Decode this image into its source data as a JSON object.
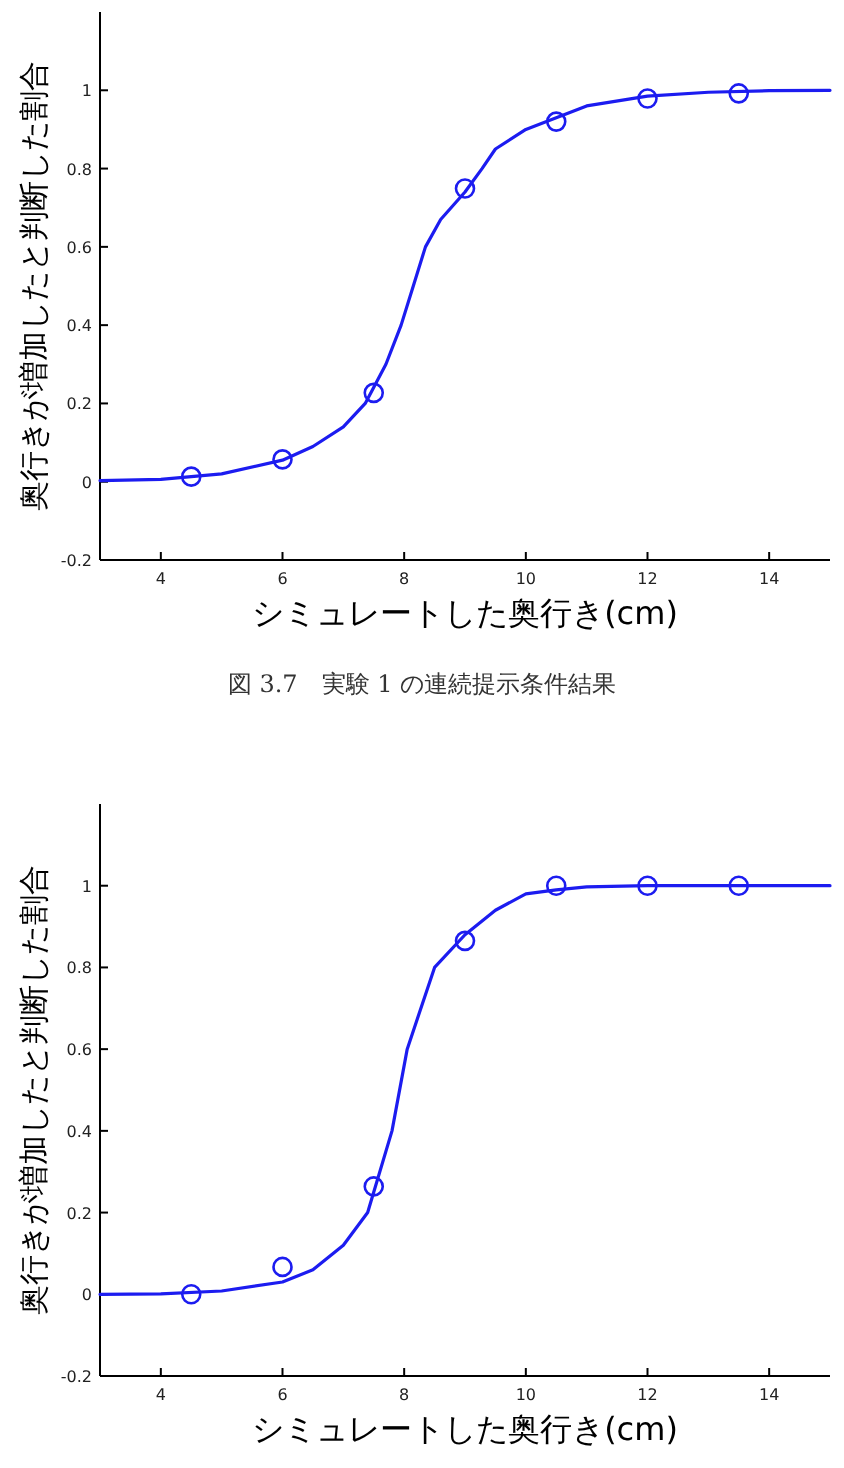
{
  "chart_data": [
    {
      "type": "scatter",
      "xlabel": "シミュレートした奥行き(cm)",
      "ylabel": "奥行きが増加したと判断した割合",
      "xlim": [
        3,
        15
      ],
      "ylim": [
        -0.2,
        1.2
      ],
      "xticks": [
        4,
        6,
        8,
        10,
        12,
        14
      ],
      "yticks": [
        -0.2,
        0,
        0.2,
        0.4,
        0.6,
        0.8,
        1
      ],
      "annotations": [
        "図 3.7　実験 1 の連続提示条件結果"
      ],
      "series": [
        {
          "type": "scatter",
          "marker": "circle",
          "color": "#1c1cf0",
          "x": [
            4.5,
            6,
            7.5,
            9,
            10.5,
            12,
            13.5
          ],
          "values": [
            0.013,
            0.057,
            0.227,
            0.749,
            0.92,
            0.979,
            0.992
          ]
        },
        {
          "type": "line",
          "line_style": "solid",
          "color": "#1c1cf0",
          "x": [
            3,
            4,
            5,
            6,
            6.5,
            7,
            7.36,
            7.7,
            7.95,
            8.15,
            8.35,
            8.6,
            9,
            9.28,
            9.5,
            10,
            10.5,
            11,
            12,
            13,
            14,
            15
          ],
          "values": [
            0.003,
            0.006,
            0.02,
            0.055,
            0.09,
            0.14,
            0.2,
            0.3,
            0.4,
            0.5,
            0.6,
            0.67,
            0.74,
            0.8,
            0.85,
            0.9,
            0.93,
            0.96,
            0.985,
            0.995,
            0.999,
            1
          ]
        }
      ]
    },
    {
      "type": "scatter",
      "xlabel": "シミュレートした奥行き(cm)",
      "ylabel": "奥行きが増加したと判断した割合",
      "xlim": [
        3,
        15
      ],
      "ylim": [
        -0.2,
        1.2
      ],
      "xticks": [
        4,
        6,
        8,
        10,
        12,
        14
      ],
      "yticks": [
        -0.2,
        0,
        0.2,
        0.4,
        0.6,
        0.8,
        1
      ],
      "series": [
        {
          "type": "scatter",
          "marker": "circle",
          "color": "#1c1cf0",
          "x": [
            4.5,
            6,
            7.5,
            9,
            10.5,
            12,
            13.5
          ],
          "values": [
            0.0,
            0.067,
            0.264,
            0.865,
            1.0,
            1.0,
            1.0
          ]
        },
        {
          "type": "line",
          "line_style": "solid",
          "color": "#1c1cf0",
          "x": [
            3,
            4,
            5,
            6,
            6.5,
            7,
            7.4,
            7.8,
            8.05,
            8.5,
            9,
            9.5,
            10,
            10.5,
            11,
            12,
            15
          ],
          "values": [
            0,
            0.001,
            0.008,
            0.03,
            0.06,
            0.12,
            0.2,
            0.4,
            0.6,
            0.8,
            0.88,
            0.94,
            0.98,
            0.99,
            0.997,
            1,
            1
          ]
        }
      ]
    }
  ]
}
